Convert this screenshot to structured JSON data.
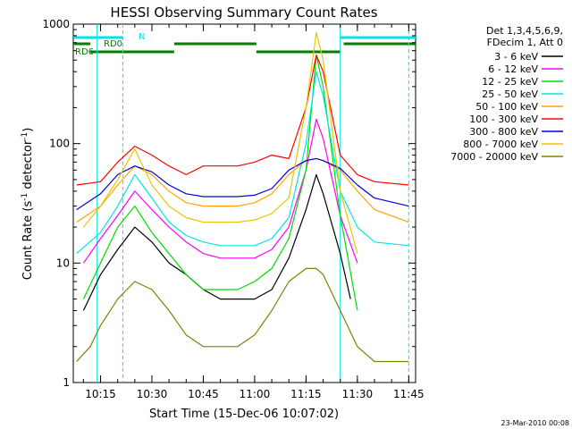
{
  "chart_data": {
    "type": "line",
    "title": "HESSI Observing Summary Count Rates",
    "xlabel": "Start Time (15-Dec-06 10:07:02)",
    "ylabel_main": "Count Rate (s",
    "ylabel_sup1": "-1",
    "ylabel_mid": " detector",
    "ylabel_sup2": "-1",
    "ylabel_end": ")",
    "yscale": "log",
    "ylim": [
      1,
      1000
    ],
    "xlim": [
      "10:07:02",
      "11:47:00"
    ],
    "x_tick_labels": [
      "10:15",
      "10:30",
      "10:45",
      "11:00",
      "11:15",
      "11:30",
      "11:45"
    ],
    "y_tick_labels": [
      "1",
      "10",
      "100",
      "1000"
    ],
    "grid": false,
    "legend_position": "right",
    "legend_header": [
      "Det 1,3,4,5,6,9,",
      "FDecim 1, Att 0"
    ],
    "flag_labels": {
      "n": "N",
      "rd0": "RD0",
      "rd6": "RD6"
    },
    "footer_date": "23-Mar-2010 00:08",
    "colors": {
      "cyan_flag": "#00e5e5",
      "green_flag": "#007f00"
    },
    "series": [
      {
        "name": "3 - 6 keV",
        "color": "#000000",
        "x": [
          "10:10",
          "10:15",
          "10:20",
          "10:25",
          "10:30",
          "10:35",
          "10:40",
          "10:45",
          "10:50",
          "10:55",
          "11:00",
          "11:05",
          "11:10",
          "11:15",
          "11:18",
          "11:20",
          "11:25",
          "11:28"
        ],
        "y": [
          4,
          8,
          13,
          20,
          15,
          10,
          8,
          6,
          5,
          5,
          5,
          6,
          11,
          28,
          55,
          38,
          12,
          5
        ]
      },
      {
        "name": "6 - 12 keV",
        "color": "#ff00ff",
        "x": [
          "10:10",
          "10:15",
          "10:20",
          "10:25",
          "10:30",
          "10:35",
          "10:40",
          "10:45",
          "10:50",
          "10:55",
          "11:00",
          "11:05",
          "11:10",
          "11:15",
          "11:18",
          "11:20",
          "11:25",
          "11:30"
        ],
        "y": [
          10,
          16,
          25,
          40,
          28,
          20,
          15,
          12,
          11,
          11,
          11,
          13,
          20,
          60,
          160,
          110,
          25,
          10
        ]
      },
      {
        "name": "12 - 25 keV",
        "color": "#00dd00",
        "x": [
          "10:10",
          "10:15",
          "10:20",
          "10:25",
          "10:30",
          "10:35",
          "10:40",
          "10:45",
          "10:50",
          "10:55",
          "11:00",
          "11:05",
          "11:10",
          "11:15",
          "11:18",
          "11:20",
          "11:25",
          "11:30"
        ],
        "y": [
          5,
          10,
          20,
          30,
          18,
          12,
          8,
          6,
          6,
          6,
          7,
          9,
          16,
          60,
          550,
          300,
          25,
          4
        ]
      },
      {
        "name": "25 - 50 keV",
        "color": "#00e5e5",
        "x": [
          "10:08",
          "10:15",
          "10:20",
          "10:25",
          "10:30",
          "10:35",
          "10:40",
          "10:45",
          "10:50",
          "10:55",
          "11:00",
          "11:05",
          "11:10",
          "11:15",
          "11:18",
          "11:20",
          "11:25",
          "11:30",
          "11:35",
          "11:45"
        ],
        "y": [
          12,
          18,
          30,
          55,
          35,
          22,
          17,
          15,
          14,
          14,
          14,
          16,
          24,
          100,
          400,
          250,
          40,
          20,
          15,
          14
        ]
      },
      {
        "name": "50 - 100 keV",
        "color": "#ffa500",
        "x": [
          "10:08",
          "10:15",
          "10:20",
          "10:25",
          "10:30",
          "10:35",
          "10:40",
          "10:45",
          "10:50",
          "10:55",
          "11:00",
          "11:05",
          "11:10",
          "11:15",
          "11:18",
          "11:20",
          "11:25",
          "11:30",
          "11:35",
          "11:45"
        ],
        "y": [
          22,
          30,
          45,
          65,
          55,
          40,
          32,
          30,
          30,
          30,
          32,
          38,
          55,
          72,
          75,
          72,
          60,
          40,
          28,
          22
        ]
      },
      {
        "name": "100 - 300 keV",
        "color": "#ff0000",
        "x": [
          "10:08",
          "10:15",
          "10:20",
          "10:25",
          "10:30",
          "10:35",
          "10:40",
          "10:45",
          "10:50",
          "10:55",
          "11:00",
          "11:05",
          "11:10",
          "11:15",
          "11:18",
          "11:20",
          "11:25",
          "11:30",
          "11:35",
          "11:45"
        ],
        "y": [
          45,
          48,
          70,
          95,
          80,
          65,
          55,
          65,
          65,
          65,
          70,
          80,
          75,
          200,
          550,
          400,
          80,
          55,
          48,
          45
        ]
      },
      {
        "name": "300 - 800 keV",
        "color": "#0000dd",
        "x": [
          "10:08",
          "10:15",
          "10:20",
          "10:25",
          "10:30",
          "10:35",
          "10:40",
          "10:45",
          "10:50",
          "10:55",
          "11:00",
          "11:05",
          "11:10",
          "11:15",
          "11:18",
          "11:20",
          "11:25",
          "11:30",
          "11:35",
          "11:45"
        ],
        "y": [
          28,
          38,
          55,
          65,
          58,
          45,
          38,
          36,
          36,
          36,
          37,
          42,
          60,
          72,
          75,
          72,
          62,
          45,
          35,
          30
        ]
      },
      {
        "name": "800 - 7000 keV",
        "color": "#e5c800",
        "x": [
          "10:10",
          "10:15",
          "10:20",
          "10:25",
          "10:30",
          "10:35",
          "10:40",
          "10:45",
          "10:50",
          "10:55",
          "11:00",
          "11:05",
          "11:10",
          "11:15",
          "11:18",
          "11:20",
          "11:25",
          "11:30"
        ],
        "y": [
          20,
          30,
          50,
          90,
          45,
          30,
          24,
          22,
          22,
          22,
          23,
          26,
          35,
          200,
          850,
          500,
          40,
          12
        ]
      },
      {
        "name": "7000 - 20000 keV",
        "color": "#808000",
        "x": [
          "10:08",
          "10:12",
          "10:15",
          "10:20",
          "10:25",
          "10:30",
          "10:35",
          "10:40",
          "10:45",
          "10:50",
          "10:55",
          "11:00",
          "11:05",
          "11:10",
          "11:15",
          "11:18",
          "11:20",
          "11:25",
          "11:30",
          "11:35",
          "11:45"
        ],
        "y": [
          1.5,
          2,
          3,
          5,
          7,
          6,
          4,
          2.5,
          2,
          2,
          2,
          2.5,
          4,
          7,
          9,
          9,
          8,
          4,
          2,
          1.5,
          1.5
        ]
      }
    ]
  }
}
